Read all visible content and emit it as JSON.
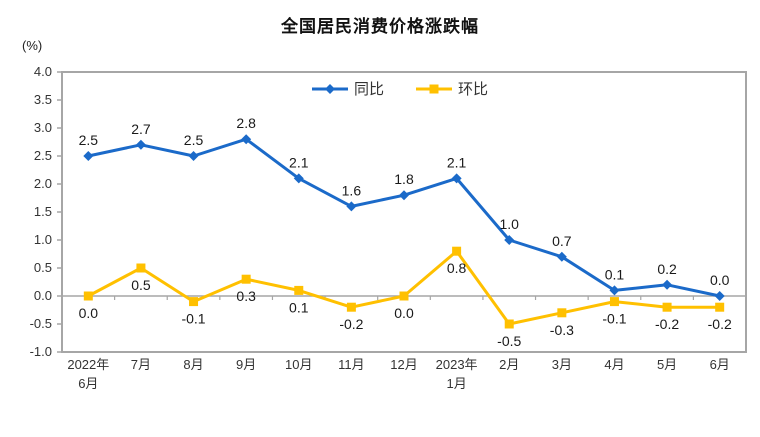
{
  "title": "全国居民消费价格涨跌幅",
  "unit_label": "(%)",
  "colors": {
    "series_tongbi": "#1B6AC9",
    "series_huanbi": "#FFC000",
    "axis_line": "#A6A6A6",
    "tick_text": "#333333",
    "data_label": "#1A1A1A",
    "legend_text": "#333333"
  },
  "chart_data": {
    "type": "line",
    "title": "全国居民消费价格涨跌幅",
    "ylabel": "(%)",
    "categories": [
      "2022年\n6月",
      "7月",
      "8月",
      "9月",
      "10月",
      "11月",
      "12月",
      "2023年\n1月",
      "2月",
      "3月",
      "4月",
      "5月",
      "6月"
    ],
    "series": [
      {
        "name": "同比",
        "color": "#1B6AC9",
        "marker": "diamond",
        "label_position": "above",
        "values": [
          2.5,
          2.7,
          2.5,
          2.8,
          2.1,
          1.6,
          1.8,
          2.1,
          1.0,
          0.7,
          0.1,
          0.2,
          0.0
        ]
      },
      {
        "name": "环比",
        "color": "#FFC000",
        "marker": "square",
        "label_position": "below",
        "values": [
          0.0,
          0.5,
          -0.1,
          0.3,
          0.1,
          -0.2,
          0.0,
          0.8,
          -0.5,
          -0.3,
          -0.1,
          -0.2,
          -0.2
        ]
      }
    ],
    "ylim": [
      -1.0,
      4.0
    ],
    "ytick_step": 0.5,
    "grid": "zero-line-only",
    "legend_position": "top-center",
    "data_labels": true
  }
}
